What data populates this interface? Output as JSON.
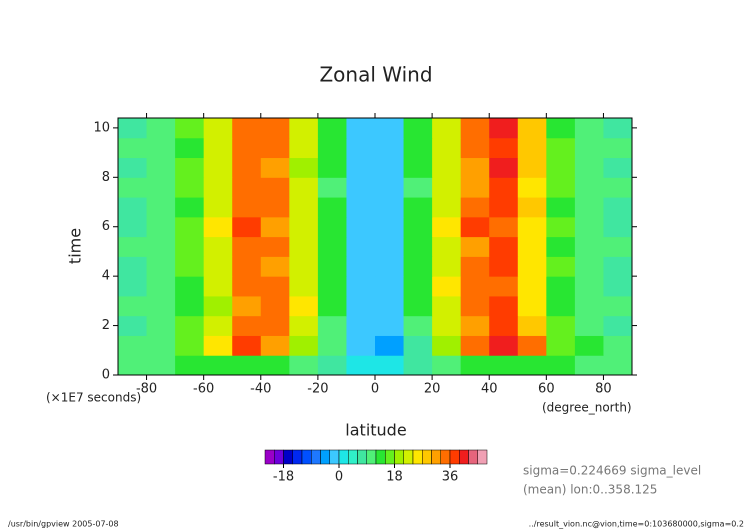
{
  "chart_data": {
    "type": "heatmap",
    "title": "Zonal Wind",
    "x_label": "latitude",
    "y_label": "time",
    "x_units": "(degree_north)",
    "y_units": "(×1E7 seconds)",
    "xlim": [
      -90,
      90
    ],
    "xticks": [
      -80,
      -60,
      -40,
      -20,
      0,
      20,
      40,
      60,
      80
    ],
    "ylim": [
      0,
      10.4
    ],
    "yticks": [
      0,
      2,
      4,
      6,
      8,
      10
    ],
    "x": [
      -85,
      -75,
      -65,
      -55,
      -45,
      -35,
      -25,
      -15,
      -5,
      5,
      15,
      25,
      35,
      45,
      55,
      65,
      75,
      85
    ],
    "y": [
      0.4,
      1.2,
      2.0,
      2.8,
      3.6,
      4.4,
      5.2,
      6.0,
      6.8,
      7.6,
      8.4,
      9.2,
      10.0
    ],
    "values": [
      [
        10,
        11,
        12,
        13,
        14,
        12,
        9,
        6,
        2,
        2,
        6,
        9,
        12,
        13,
        14,
        13,
        11,
        10
      ],
      [
        9,
        11,
        16,
        24,
        37,
        31,
        18,
        9,
        -3,
        -4,
        8,
        20,
        33,
        40,
        34,
        17,
        12,
        9
      ],
      [
        8,
        10,
        15,
        22,
        34,
        33,
        21,
        11,
        -2,
        -3,
        11,
        22,
        32,
        37,
        27,
        15,
        10,
        8
      ],
      [
        9,
        11,
        14,
        20,
        31,
        35,
        24,
        12,
        -2,
        -2,
        12,
        23,
        34,
        36,
        25,
        14,
        11,
        9
      ],
      [
        7,
        10,
        14,
        21,
        33,
        34,
        22,
        13,
        -1,
        -2,
        13,
        24,
        35,
        34,
        24,
        14,
        10,
        8
      ],
      [
        8,
        9,
        15,
        22,
        35,
        32,
        21,
        12,
        -2,
        -1,
        12,
        22,
        33,
        37,
        26,
        15,
        9,
        7
      ],
      [
        9,
        10,
        15,
        23,
        34,
        33,
        23,
        12,
        -2,
        -2,
        12,
        23,
        31,
        36,
        26,
        14,
        10,
        9
      ],
      [
        8,
        11,
        16,
        24,
        36,
        32,
        22,
        13,
        -2,
        -3,
        13,
        26,
        37,
        35,
        24,
        15,
        11,
        8
      ],
      [
        7,
        10,
        14,
        21,
        33,
        35,
        22,
        12,
        -2,
        -2,
        12,
        22,
        33,
        38,
        27,
        14,
        10,
        8
      ],
      [
        9,
        11,
        15,
        22,
        34,
        33,
        21,
        11,
        -1,
        -2,
        11,
        21,
        32,
        37,
        26,
        15,
        11,
        9
      ],
      [
        8,
        10,
        15,
        23,
        35,
        31,
        20,
        12,
        -2,
        -2,
        12,
        22,
        32,
        39,
        28,
        16,
        10,
        8
      ],
      [
        9,
        11,
        14,
        21,
        33,
        34,
        22,
        12,
        -2,
        -3,
        12,
        23,
        33,
        38,
        27,
        15,
        11,
        9
      ],
      [
        8,
        10,
        15,
        22,
        35,
        33,
        21,
        12,
        -2,
        -2,
        12,
        22,
        34,
        40,
        28,
        14,
        10,
        8
      ]
    ],
    "colorbar": {
      "levels": [
        -24,
        -21,
        -18,
        -15,
        -12,
        -9,
        -6,
        -3,
        0,
        3,
        6,
        9,
        12,
        15,
        18,
        21,
        24,
        27,
        30,
        33,
        36,
        39,
        42,
        45,
        48
      ],
      "colors": [
        "#9a00c8",
        "#6e00dc",
        "#0000c8",
        "#0028f0",
        "#0050ff",
        "#1e78ff",
        "#00a0ff",
        "#3cc8ff",
        "#1ee6e6",
        "#30f0c8",
        "#40e6a0",
        "#50f078",
        "#28e632",
        "#64f01e",
        "#a0f000",
        "#d2f000",
        "#ffe600",
        "#ffc800",
        "#ffa000",
        "#ff6e00",
        "#ff3c00",
        "#f01e1e",
        "#e6647c",
        "#f0a0b4"
      ],
      "ticks": [
        -18,
        0,
        18,
        36
      ]
    },
    "notes": [
      "sigma=0.224669 sigma_level",
      "(mean) lon:0..358.125"
    ],
    "footer_left": "/usr/bin/gpview  2005-07-08",
    "footer_right": "../result_vion.nc@vion,time=0:103680000,sigma=0.2"
  }
}
